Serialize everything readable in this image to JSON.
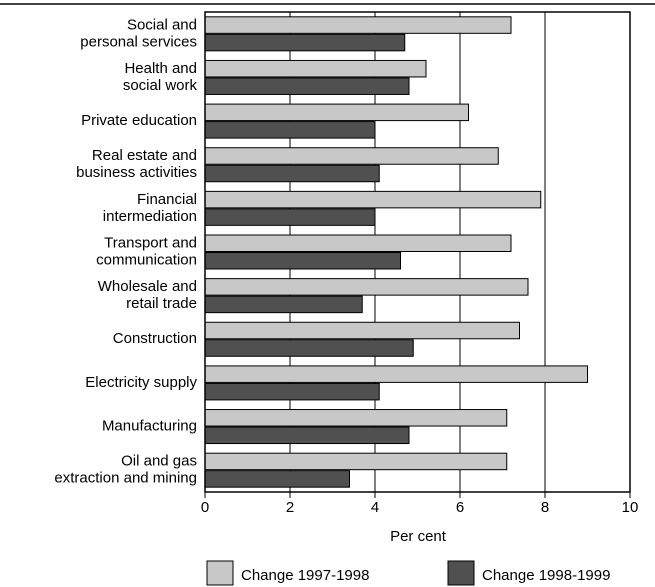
{
  "chart_data": {
    "type": "hbar",
    "categories": [
      [
        "Social and",
        "personal services"
      ],
      [
        "Health and",
        "social work"
      ],
      [
        "Private education"
      ],
      [
        "Real estate and",
        "business activities"
      ],
      [
        "Financial",
        "intermediation"
      ],
      [
        "Transport and",
        "communication"
      ],
      [
        "Wholesale and",
        "retail trade"
      ],
      [
        "Construction"
      ],
      [
        "Electricity supply"
      ],
      [
        "Manufacturing"
      ],
      [
        "Oil and gas",
        "extraction and mining"
      ]
    ],
    "series": [
      {
        "name": "Change 1997-1998",
        "color": "#c8c8c8",
        "values": [
          7.2,
          5.2,
          6.2,
          6.9,
          7.9,
          7.2,
          7.6,
          7.4,
          9.0,
          7.1,
          7.1
        ]
      },
      {
        "name": "Change 1998-1999",
        "color": "#505050",
        "values": [
          4.7,
          4.8,
          4.0,
          4.1,
          4.0,
          4.6,
          3.7,
          4.9,
          4.1,
          4.8,
          3.4
        ]
      }
    ],
    "xlabel": "Per cent",
    "xlim": [
      0,
      10
    ],
    "xticks": [
      0,
      2,
      4,
      6,
      8,
      10
    ],
    "grid": true
  }
}
